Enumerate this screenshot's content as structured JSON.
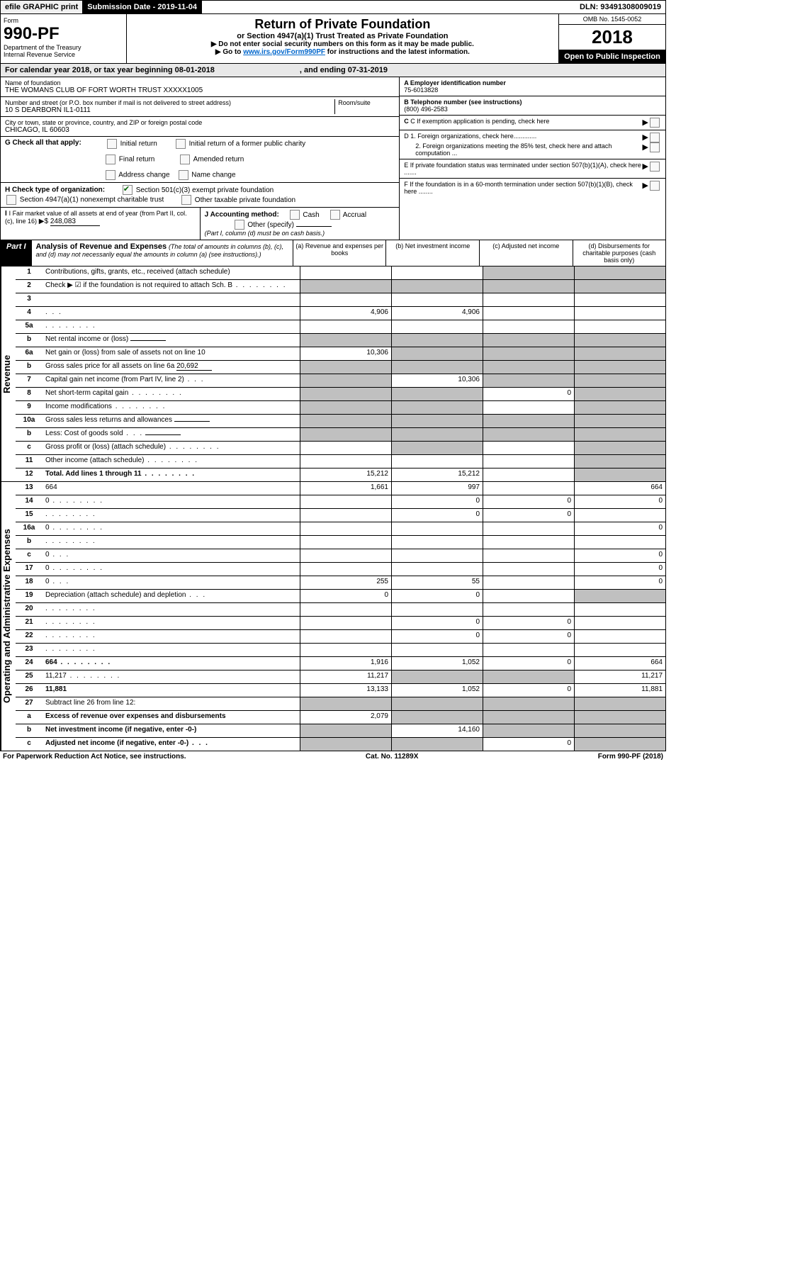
{
  "top": {
    "efile": "efile GRAPHIC print",
    "sub_label": "Submission Date - 2019-11-04",
    "dln": "DLN: 93491308009019"
  },
  "header": {
    "form_word": "Form",
    "form_num": "990-PF",
    "dept": "Department of the Treasury",
    "irs": "Internal Revenue Service",
    "title": "Return of Private Foundation",
    "sub1": "or Section 4947(a)(1) Trust Treated as Private Foundation",
    "sub2a": "▶ Do not enter social security numbers on this form as it may be made public.",
    "sub2b_pre": "▶ Go to ",
    "sub2b_link": "www.irs.gov/Form990PF",
    "sub2b_post": " for instructions and the latest information.",
    "omb": "OMB No. 1545-0052",
    "year": "2018",
    "open": "Open to Public Inspection"
  },
  "calyear": {
    "text": "For calendar year 2018, or tax year beginning 08-01-2018",
    "end": ", and ending 07-31-2019"
  },
  "entity": {
    "name_label": "Name of foundation",
    "name": "THE WOMANS CLUB OF FORT WORTH TRUST XXXXX1005",
    "addr_label": "Number and street (or P.O. box number if mail is not delivered to street address)",
    "room_label": "Room/suite",
    "addr": "10 S DEARBORN IL1-0111",
    "city_label": "City or town, state or province, country, and ZIP or foreign postal code",
    "city": "CHICAGO, IL  60603",
    "a_label": "A Employer identification number",
    "a_val": "75-6013828",
    "b_label": "B  Telephone number (see instructions)",
    "b_val": "(800) 496-2583",
    "c_label": "C  If exemption application is pending, check here",
    "d1": "D 1. Foreign organizations, check here.............",
    "d2": "2. Foreign organizations meeting the 85% test, check here and attach computation ...",
    "e_label": "E  If private foundation status was terminated under section 507(b)(1)(A), check here .......",
    "f_label": "F  If the foundation is in a 60-month termination under section 507(b)(1)(B), check here ........"
  },
  "g": {
    "label": "G Check all that apply:",
    "opts": [
      "Initial return",
      "Final return",
      "Address change",
      "Initial return of a former public charity",
      "Amended return",
      "Name change"
    ]
  },
  "h": {
    "label": "H Check type of organization:",
    "opt1": "Section 501(c)(3) exempt private foundation",
    "opt2": "Section 4947(a)(1) nonexempt charitable trust",
    "opt3": "Other taxable private foundation"
  },
  "i": {
    "label": "I Fair market value of all assets at end of year (from Part II, col. (c), line 16)",
    "prefix": "▶$",
    "val": "248,083"
  },
  "j": {
    "label": "J Accounting method:",
    "cash": "Cash",
    "accrual": "Accrual",
    "other": "Other (specify)",
    "note": "(Part I, column (d) must be on cash basis.)"
  },
  "part1": {
    "label": "Part I",
    "title": "Analysis of Revenue and Expenses",
    "sub": "(The total of amounts in columns (b), (c), and (d) may not necessarily equal the amounts in column (a) (see instructions).)",
    "col_a": "(a)  Revenue and expenses per books",
    "col_b": "(b)  Net investment income",
    "col_c": "(c)  Adjusted net income",
    "col_d": "(d)  Disbursements for charitable purposes (cash basis only)"
  },
  "side": {
    "rev": "Revenue",
    "exp": "Operating and Administrative Expenses"
  },
  "rows": [
    {
      "n": "1",
      "d": "Contributions, gifts, grants, etc., received (attach schedule)",
      "a": "",
      "b": "",
      "cG": true,
      "dG": true
    },
    {
      "n": "2",
      "d": "Check ▶ ☑ if the foundation is not required to attach Sch. B",
      "dots": true,
      "allG": true
    },
    {
      "n": "3",
      "d": "",
      "a": "",
      "b": "",
      "c": ""
    },
    {
      "n": "4",
      "d": "",
      "dots3": true,
      "a": "4,906",
      "b": "4,906",
      "c": ""
    },
    {
      "n": "5a",
      "d": "",
      "dots": true,
      "a": "",
      "b": "",
      "c": ""
    },
    {
      "n": "b",
      "d": "Net rental income or (loss)",
      "u": true,
      "allG": true
    },
    {
      "n": "6a",
      "d": "Net gain or (loss) from sale of assets not on line 10",
      "a": "10,306",
      "bG": true,
      "cG": true,
      "dG": true
    },
    {
      "n": "b",
      "d": "Gross sales price for all assets on line 6a",
      "u": true,
      "uval": "20,692",
      "allG": true
    },
    {
      "n": "7",
      "d": "Capital gain net income (from Part IV, line 2)",
      "dots3": true,
      "aG": true,
      "b": "10,306",
      "cG": true,
      "dG": true
    },
    {
      "n": "8",
      "d": "Net short-term capital gain",
      "dots": true,
      "aG": true,
      "bG": true,
      "c": "0",
      "dG": true
    },
    {
      "n": "9",
      "d": "Income modifications",
      "dots": true,
      "aG": true,
      "bG": true,
      "c": "",
      "dG": true
    },
    {
      "n": "10a",
      "d": "Gross sales less returns and allowances",
      "u": true,
      "allG": true
    },
    {
      "n": "b",
      "d": "Less: Cost of goods sold",
      "dots3": true,
      "u": true,
      "allG": true
    },
    {
      "n": "c",
      "d": "Gross profit or (loss) (attach schedule)",
      "dots": true,
      "a": "",
      "bG": true,
      "c": "",
      "dG": true
    },
    {
      "n": "11",
      "d": "Other income (attach schedule)",
      "dots": true,
      "a": "",
      "b": "",
      "c": "",
      "dG": true
    },
    {
      "n": "12",
      "d": "Total. Add lines 1 through 11",
      "bold": true,
      "dots": true,
      "a": "15,212",
      "b": "15,212",
      "c": "",
      "dG": true
    }
  ],
  "rows_exp": [
    {
      "n": "13",
      "d": "664",
      "a": "1,661",
      "b": "997",
      "c": ""
    },
    {
      "n": "14",
      "d": "0",
      "dots": true,
      "a": "",
      "b": "0",
      "c": "0"
    },
    {
      "n": "15",
      "d": "",
      "dots": true,
      "a": "",
      "b": "0",
      "c": "0"
    },
    {
      "n": "16a",
      "d": "0",
      "dots": true,
      "a": "",
      "b": "",
      "c": ""
    },
    {
      "n": "b",
      "d": "",
      "dots": true,
      "a": "",
      "b": "",
      "c": ""
    },
    {
      "n": "c",
      "d": "0",
      "dots3": true,
      "a": "",
      "b": "",
      "c": ""
    },
    {
      "n": "17",
      "d": "0",
      "dots": true,
      "a": "",
      "b": "",
      "c": ""
    },
    {
      "n": "18",
      "d": "0",
      "dots3": true,
      "a": "255",
      "b": "55",
      "c": ""
    },
    {
      "n": "19",
      "d": "Depreciation (attach schedule) and depletion",
      "dots3": true,
      "a": "0",
      "b": "0",
      "c": "",
      "dG": true
    },
    {
      "n": "20",
      "d": "",
      "dots": true,
      "a": "",
      "b": "",
      "c": ""
    },
    {
      "n": "21",
      "d": "",
      "dots": true,
      "a": "",
      "b": "0",
      "c": "0"
    },
    {
      "n": "22",
      "d": "",
      "dots": true,
      "a": "",
      "b": "0",
      "c": "0"
    },
    {
      "n": "23",
      "d": "",
      "dots": true,
      "a": "",
      "b": "",
      "c": ""
    },
    {
      "n": "24",
      "d": "664",
      "bold": true,
      "dots": true,
      "a": "1,916",
      "b": "1,052",
      "c": "0"
    },
    {
      "n": "25",
      "d": "11,217",
      "dots": true,
      "a": "11,217",
      "bG": true,
      "cG": true
    },
    {
      "n": "26",
      "d": "11,881",
      "bold": true,
      "a": "13,133",
      "b": "1,052",
      "c": "0"
    },
    {
      "n": "27",
      "d": "Subtract line 26 from line 12:",
      "allG": true
    },
    {
      "n": "a",
      "d": "Excess of revenue over expenses and disbursements",
      "bold": true,
      "a": "2,079",
      "bG": true,
      "cG": true,
      "dG": true
    },
    {
      "n": "b",
      "d": "Net investment income (if negative, enter -0-)",
      "bold": true,
      "aG": true,
      "b": "14,160",
      "cG": true,
      "dG": true
    },
    {
      "n": "c",
      "d": "Adjusted net income (if negative, enter -0-)",
      "bold": true,
      "dots3": true,
      "aG": true,
      "bG": true,
      "c": "0",
      "dG": true
    }
  ],
  "footer": {
    "left": "For Paperwork Reduction Act Notice, see instructions.",
    "center": "Cat. No. 11289X",
    "right": "Form 990-PF (2018)"
  }
}
